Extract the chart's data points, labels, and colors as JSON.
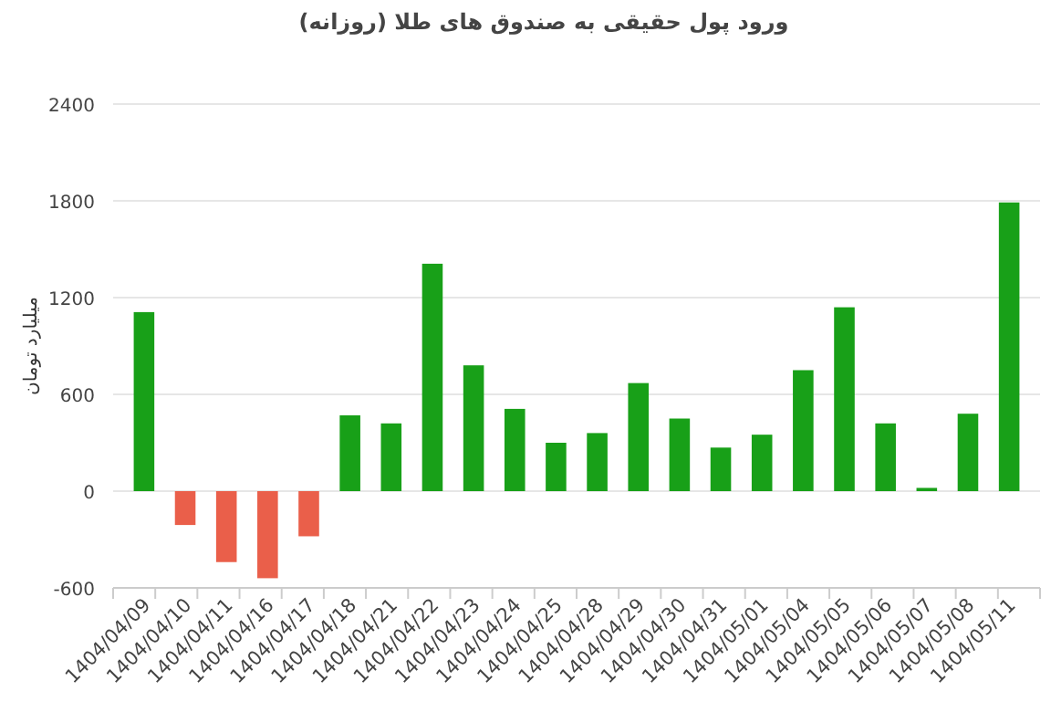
{
  "chart_data": {
    "type": "bar",
    "title": "ورود پول حقیقی به صندوق های طلا (روزانه)",
    "ylabel": "میلیارد تومان",
    "categories": [
      "1404/04/09",
      "1404/04/10",
      "1404/04/11",
      "1404/04/16",
      "1404/04/17",
      "1404/04/18",
      "1404/04/21",
      "1404/04/22",
      "1404/04/23",
      "1404/04/24",
      "1404/04/25",
      "1404/04/28",
      "1404/04/29",
      "1404/04/30",
      "1404/04/31",
      "1404/05/01",
      "1404/05/04",
      "1404/05/05",
      "1404/05/06",
      "1404/05/07",
      "1404/05/08",
      "1404/05/11"
    ],
    "values": [
      1110,
      -210,
      -440,
      -540,
      -280,
      470,
      420,
      1410,
      780,
      510,
      300,
      360,
      670,
      450,
      270,
      350,
      750,
      1140,
      420,
      20,
      480,
      1790
    ],
    "colors": [
      "#18a018",
      "#ea5f4a",
      "#ea5f4a",
      "#ea5f4a",
      "#ea5f4a",
      "#18a018",
      "#18a018",
      "#18a018",
      "#18a018",
      "#18a018",
      "#18a018",
      "#18a018",
      "#18a018",
      "#18a018",
      "#18a018",
      "#18a018",
      "#18a018",
      "#18a018",
      "#18a018",
      "#18a018",
      "#18a018",
      "#18a018"
    ],
    "ylim": [
      -600,
      2400
    ],
    "yticks": [
      -600,
      0,
      600,
      1200,
      1800,
      2400
    ],
    "grid": "y"
  }
}
